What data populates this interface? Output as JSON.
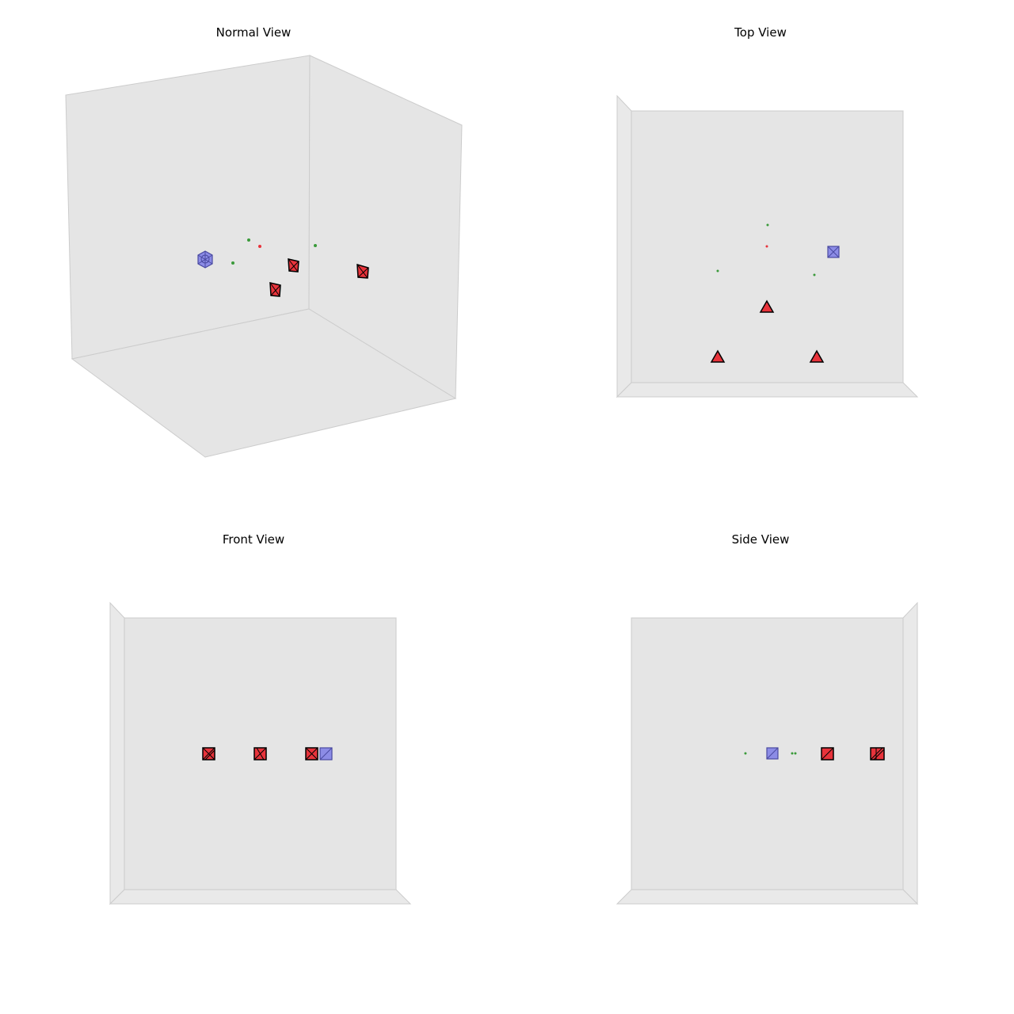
{
  "panels": [
    {
      "id": "normal",
      "title": "Normal View"
    },
    {
      "id": "top",
      "title": "Top View"
    },
    {
      "id": "front",
      "title": "Front View"
    },
    {
      "id": "side",
      "title": "Side View"
    }
  ],
  "colors": {
    "pane": "#e5e5e5",
    "pane_edge": "#cccccc",
    "red_fill": "#e8333b",
    "red_edge": "#000000",
    "blue_fill": "#8c8ce6",
    "blue_edge": "#4a4aa0",
    "green_point": "#3a9a3a",
    "red_point": "#e8333b"
  },
  "objects": {
    "red_markers": 3,
    "blue_markers": 1,
    "green_points": 3,
    "red_points": 1
  }
}
